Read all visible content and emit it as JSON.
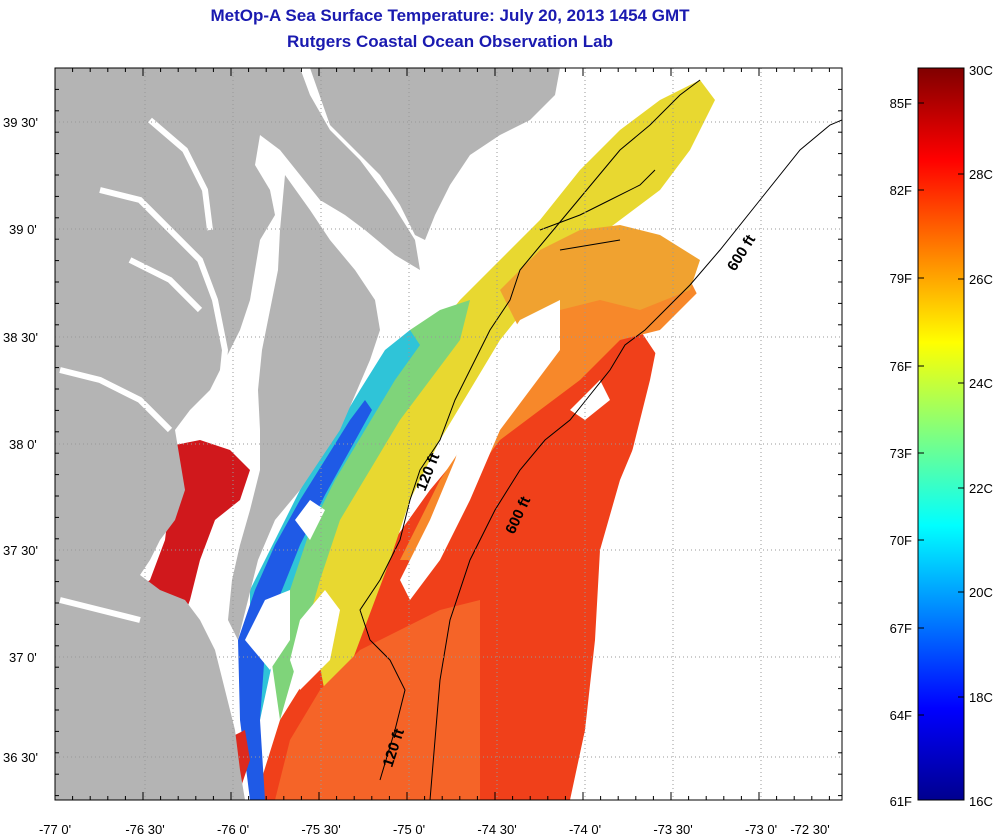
{
  "title": {
    "line1": "MetOp-A Sea Surface Temperature:  July 20, 2013 1454 GMT",
    "line2": "Rutgers Coastal Ocean Observation Lab"
  },
  "map": {
    "lat_ticks": [
      "39 30'",
      "39 0'",
      "38 30'",
      "38 0'",
      "37 30'",
      "37 0'",
      "36 30'"
    ],
    "lon_ticks": [
      "-77 0'",
      "-76 30'",
      "-76 0'",
      "-75 30'",
      "-75 0'",
      "-74 30'",
      "-74 0'",
      "-73 30'",
      "-73 0'",
      "-72 30'"
    ],
    "contour_labels": [
      "120 ft",
      "120 ft",
      "600 ft",
      "600 ft"
    ],
    "colors": {
      "land": "#b4b4b4",
      "no_data": "#ffffff",
      "contour": "#000000"
    }
  },
  "colorbar": {
    "fahrenheit_labels": [
      "85F",
      "82F",
      "79F",
      "76F",
      "73F",
      "70F",
      "67F",
      "64F",
      "61F"
    ],
    "celsius_labels": [
      "30C",
      "28C",
      "26C",
      "24C",
      "22C",
      "20C",
      "18C",
      "16C"
    ],
    "range_celsius": [
      16,
      30
    ],
    "colormap": "jet"
  }
}
